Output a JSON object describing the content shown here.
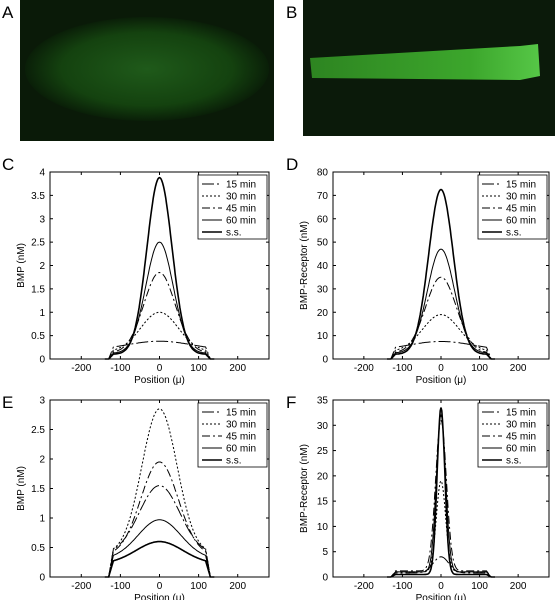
{
  "panel_labels": [
    "A",
    "B",
    "C",
    "D",
    "E",
    "F"
  ],
  "legend": [
    "15 min",
    "30 min",
    "45 min",
    "60 min",
    "s.s."
  ],
  "chart_data": [
    {
      "panel": "C",
      "type": "line",
      "xlabel": "Position (μ)",
      "ylabel": "BMP (nM)",
      "xlim": [
        -280,
        280
      ],
      "ylim": [
        0,
        4
      ],
      "xticks": [
        -200,
        -100,
        0,
        100,
        200
      ],
      "yticks": [
        0,
        0.5,
        1,
        1.5,
        2,
        2.5,
        3,
        3.5,
        4
      ],
      "ytick_labels": [
        "0",
        "0.5",
        "1",
        "1.5",
        "2",
        "2.5",
        "3",
        "3.5",
        "4"
      ],
      "legend_position": "top-right",
      "series": [
        {
          "name": "15 min",
          "peak": 0.38,
          "edge": 0.18,
          "width": 85,
          "dash": "12,3,2,3",
          "stroke": 1
        },
        {
          "name": "30 min",
          "peak": 1.0,
          "edge": 0.15,
          "width": 48,
          "dash": "2,2",
          "stroke": 1
        },
        {
          "name": "45 min",
          "peak": 1.85,
          "edge": 0.13,
          "width": 40,
          "dash": "8,3,2,3",
          "stroke": 1
        },
        {
          "name": "60 min",
          "peak": 2.5,
          "edge": 0.12,
          "width": 35,
          "dash": "",
          "stroke": 1
        },
        {
          "name": "s.s.",
          "peak": 3.88,
          "edge": 0.1,
          "width": 32,
          "dash": "",
          "stroke": 1.6
        }
      ]
    },
    {
      "panel": "D",
      "type": "line",
      "xlabel": "Position (μ)",
      "ylabel": "BMP-Receptor (nM)",
      "xlim": [
        -280,
        280
      ],
      "ylim": [
        0,
        80
      ],
      "xticks": [
        -200,
        -100,
        0,
        100,
        200
      ],
      "yticks": [
        0,
        10,
        20,
        30,
        40,
        50,
        60,
        70,
        80
      ],
      "ytick_labels": [
        "0",
        "10",
        "20",
        "30",
        "40",
        "50",
        "60",
        "70",
        "80"
      ],
      "legend_position": "top-right",
      "series": [
        {
          "name": "15 min",
          "peak": 7.5,
          "edge": 3.5,
          "width": 85,
          "dash": "12,3,2,3",
          "stroke": 1
        },
        {
          "name": "30 min",
          "peak": 19,
          "edge": 3,
          "width": 48,
          "dash": "2,2",
          "stroke": 1
        },
        {
          "name": "45 min",
          "peak": 35,
          "edge": 2.5,
          "width": 40,
          "dash": "8,3,2,3",
          "stroke": 1
        },
        {
          "name": "60 min",
          "peak": 47,
          "edge": 2.5,
          "width": 35,
          "dash": "",
          "stroke": 1
        },
        {
          "name": "s.s.",
          "peak": 72.5,
          "edge": 2,
          "width": 32,
          "dash": "",
          "stroke": 1.6
        }
      ]
    },
    {
      "panel": "E",
      "type": "line",
      "xlabel": "Position (μ)",
      "ylabel": "BMP (nM)",
      "xlim": [
        -280,
        280
      ],
      "ylim": [
        0,
        3
      ],
      "xticks": [
        -200,
        -100,
        0,
        100,
        200
      ],
      "yticks": [
        0,
        0.5,
        1,
        1.5,
        2,
        2.5,
        3
      ],
      "ytick_labels": [
        "0",
        "0.5",
        "1",
        "1.5",
        "2",
        "2.5",
        "3"
      ],
      "legend_position": "top-right",
      "series": [
        {
          "name": "15 min",
          "peak": 1.55,
          "edge": 0.38,
          "width": 52,
          "dash": "12,3,2,3",
          "stroke": 1
        },
        {
          "name": "30 min",
          "peak": 2.85,
          "edge": 0.4,
          "width": 45,
          "dash": "2,2",
          "stroke": 1
        },
        {
          "name": "45 min",
          "peak": 1.95,
          "edge": 0.36,
          "width": 48,
          "dash": "8,3,2,3",
          "stroke": 1
        },
        {
          "name": "60 min",
          "peak": 0.97,
          "edge": 0.3,
          "width": 55,
          "dash": "",
          "stroke": 1
        },
        {
          "name": "s.s.",
          "peak": 0.6,
          "edge": 0.22,
          "width": 60,
          "dash": "",
          "stroke": 1.6
        }
      ]
    },
    {
      "panel": "F",
      "type": "line",
      "xlabel": "Position (μ)",
      "ylabel": "BMP-Receptor (nM)",
      "xlim": [
        -280,
        280
      ],
      "ylim": [
        0,
        35
      ],
      "xticks": [
        -200,
        -100,
        0,
        100,
        200
      ],
      "yticks": [
        0,
        5,
        10,
        15,
        20,
        25,
        30,
        35
      ],
      "ytick_labels": [
        "0",
        "5",
        "10",
        "15",
        "20",
        "25",
        "30",
        "35"
      ],
      "legend_position": "top-right",
      "series": [
        {
          "name": "15 min",
          "peak": 4,
          "edge": 0.8,
          "width": 20,
          "dash": "12,3,2,3",
          "stroke": 1
        },
        {
          "name": "30 min",
          "peak": 19,
          "edge": 1,
          "width": 12,
          "dash": "2,2",
          "stroke": 1
        },
        {
          "name": "45 min",
          "peak": 31,
          "edge": 1.2,
          "width": 14,
          "dash": "8,3,2,3",
          "stroke": 1
        },
        {
          "name": "60 min",
          "peak": 32,
          "edge": 1,
          "width": 12,
          "dash": "",
          "stroke": 1
        },
        {
          "name": "s.s.",
          "peak": 33.5,
          "edge": 0.5,
          "width": 10,
          "dash": "",
          "stroke": 1.6
        }
      ]
    }
  ]
}
